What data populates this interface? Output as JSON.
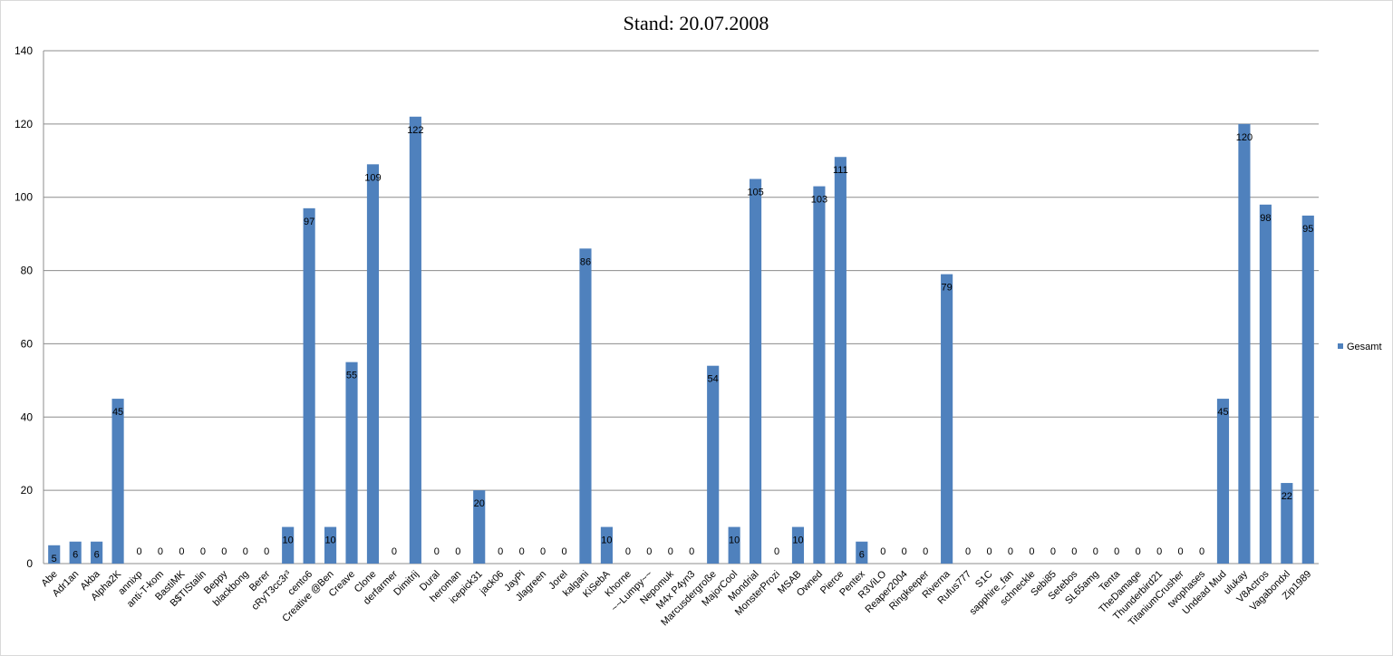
{
  "chart_data": {
    "type": "bar",
    "title": "Stand: 20.07.2008",
    "xlabel": "",
    "ylabel": "",
    "ylim": [
      0,
      140
    ],
    "yticks": [
      0,
      20,
      40,
      60,
      80,
      100,
      120,
      140
    ],
    "grid": true,
    "legend_position": "right",
    "categories": [
      "Abe",
      "Adr1an",
      "Akba",
      "Alpha2K",
      "annixp",
      "anti-T-kom",
      "BastiMK",
      "B$TIStalin",
      "Beppy",
      "blackbong",
      "Berer",
      "cRyT3cc3r³",
      "cento6",
      "Creative @Ben",
      "Creave",
      "Clone",
      "derfarmer",
      "Dimitrij",
      "Dural",
      "heroman",
      "icepick31",
      "jack06",
      "JayPi",
      "Jlagreen",
      "Jorel",
      "kalgani",
      "KiSebA",
      "Khorne",
      "~~Lumpy~~",
      "Nepomuk",
      "M4x P4yn3",
      "Marcusdergroße",
      "MajorCool",
      "Mondrial",
      "MonsterProzi",
      "MSAB",
      "Owned",
      "Pierce",
      "Pentex",
      "R3ViLO",
      "Reaper2004",
      "Ringkeeper",
      "Riverna",
      "Rufus777",
      "S1C",
      "sapphire_fan",
      "schneckle",
      "Sebi85",
      "Setebos",
      "SL65amg",
      "Tenta",
      "TheDamage",
      "Thunderbird21",
      "TitaniumCrusher",
      "twophases",
      "Undead Mud",
      "ulukay",
      "V8Actros",
      "Vagabondxl",
      "Zip1989"
    ],
    "series": [
      {
        "name": "Gesamt",
        "color": "#4f81bd",
        "values": [
          5,
          6,
          6,
          45,
          0,
          0,
          0,
          0,
          0,
          0,
          0,
          10,
          97,
          10,
          55,
          109,
          0,
          122,
          0,
          0,
          20,
          0,
          0,
          0,
          0,
          86,
          10,
          0,
          0,
          0,
          0,
          54,
          10,
          105,
          0,
          10,
          103,
          111,
          6,
          0,
          0,
          0,
          79,
          0,
          0,
          0,
          0,
          0,
          0,
          0,
          0,
          0,
          0,
          0,
          0,
          45,
          120,
          98,
          22,
          95
        ]
      }
    ]
  }
}
